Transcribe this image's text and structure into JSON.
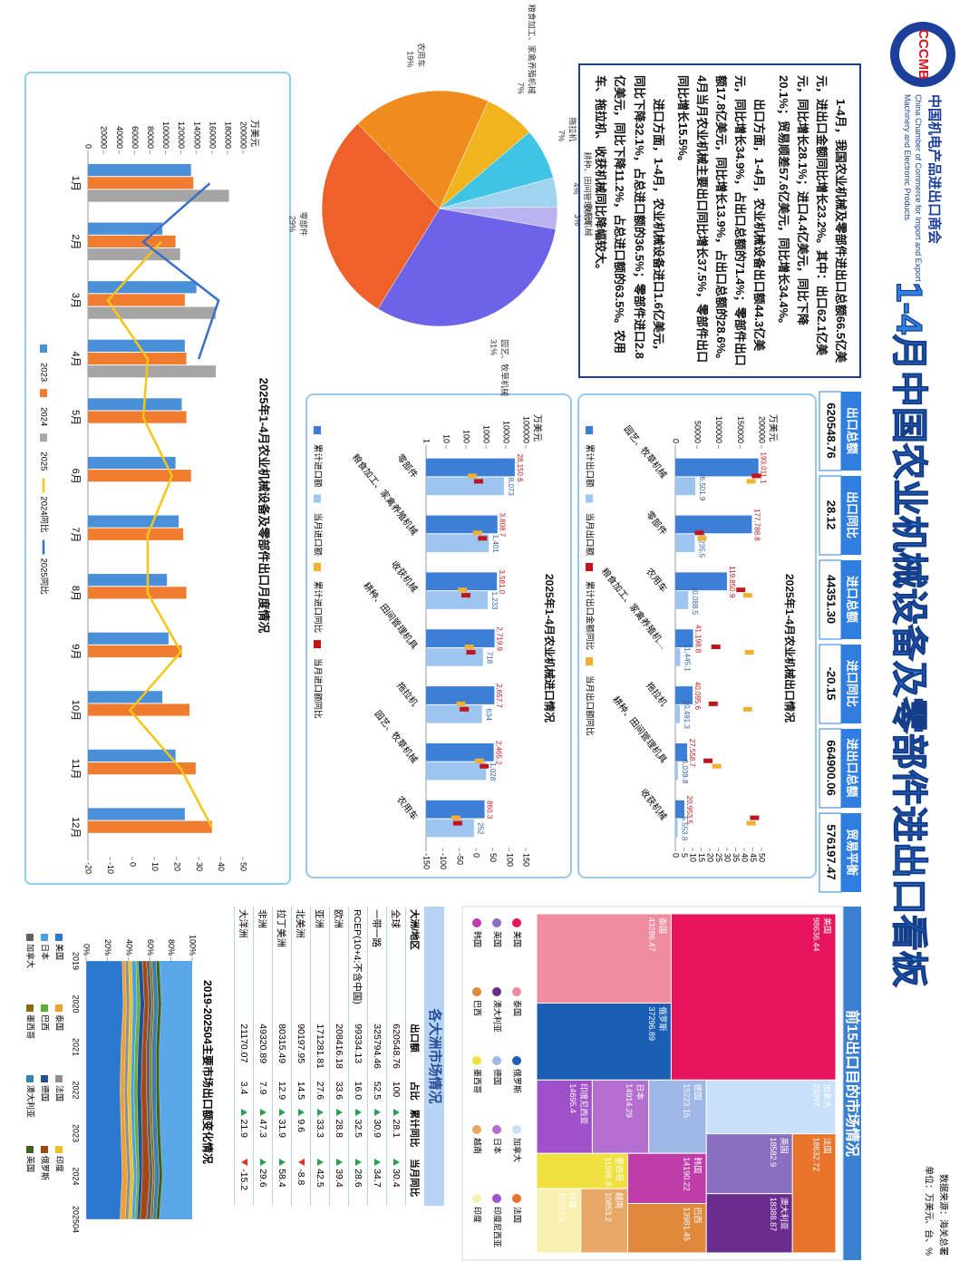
{
  "header": {
    "logo": "CCCMB",
    "org_cn": "中国机电产品进出口商会",
    "org_en": "China Chamber of Commerce for Import and Export of Machinery and Electronic Products",
    "title": "1-4月中国农业机械设备及零部件进出口看板"
  },
  "note": {
    "source": "数据来源：海关总署",
    "unit": "单位：万美元、台、%"
  },
  "kpis": [
    {
      "label": "出口总额",
      "value": "620548.76"
    },
    {
      "label": "出口同比",
      "value": "28.12"
    },
    {
      "label": "进口总额",
      "value": "44351.30"
    },
    {
      "label": "进口同比",
      "value": "-20.15"
    },
    {
      "label": "进出口总额",
      "value": "664900.06"
    },
    {
      "label": "贸易平衡",
      "value": "576197.47"
    }
  ],
  "summary": [
    "1-4月，我国农业机械及零部件进出口总额66.5亿美元，进出口金额同比增长23.2%。其中：出口62.1亿美元，同比增长28.1%；进口4.4亿美元，同比下降20.1%；贸易顺差57.6亿美元，同比增长34.4%。",
    "出口方面，1-4月，农业机械设备出口额44.3亿美元，同比增长34.9%，占出口总额的71.4%；零部件出口额17.8亿美元，同比增长13.9%，占出口总额的28.6%。4月当月农业机械主要出口同比增长37.5%，零部件出口同比增长15.5%。",
    "进口方面，1-4月，农业机械设备进口1.6亿美元，同比下降32.1%，占总进口额的36.5%；零部件进口2.8亿美元，同比下降11.2%，占总进口额的63.5%。农用车、拖拉机、收获机械同比降幅较大。"
  ],
  "market_panel": {
    "title": "前15出口目的市场情况"
  },
  "table": {
    "title": "各大洲市场情况",
    "columns": [
      "大洲/地区",
      "出口额",
      "占比",
      "累计同比",
      "当月同比"
    ],
    "rows": [
      [
        "全球",
        "620548.76",
        "100",
        "28.1",
        "30.4"
      ],
      [
        "一带一路",
        "325794.46",
        "52.5",
        "30.9",
        "34.7"
      ],
      [
        "RCEP(10+4;不含中国)",
        "99334.13",
        "16.0",
        "32.5",
        "28.6"
      ],
      [
        "欧洲",
        "208416.18",
        "33.6",
        "28.8",
        "39.4"
      ],
      [
        "亚洲",
        "171281.81",
        "27.6",
        "33.3",
        "42.5"
      ],
      [
        "北美洲",
        "90197.95",
        "14.5",
        "9.6",
        "-8.8"
      ],
      [
        "拉丁美洲",
        "80315.49",
        "12.9",
        "31.9",
        "58.4"
      ],
      [
        "非洲",
        "49320.89",
        "7.9",
        "47.3",
        "29.6"
      ],
      [
        "大洋洲",
        "21170.07",
        "3.4",
        "21.9",
        "-15.2"
      ]
    ]
  },
  "chart_data": [
    {
      "type": "pie",
      "categories": [
        "园艺、牧草机械",
        "零部件",
        "农用车",
        "粮食加工、家禽养殖机械",
        "拖拉机",
        "耕种、田间管理机具",
        "收获机械"
      ],
      "values": [
        31,
        29,
        19,
        7,
        7,
        4,
        3
      ],
      "value_labels": [
        "31%",
        "29%",
        "19%",
        "7%",
        "7%",
        "4%",
        "3%"
      ],
      "colors": [
        "#6c63e8",
        "#f0602a",
        "#f08c1e",
        "#f0b41e",
        "#40c4e4",
        "#9fd4f0",
        "#b9b3f0"
      ]
    },
    {
      "type": "bar",
      "title": "2025年1-4月农业机械设备及零部件出口月度情况",
      "y_label": "万美元",
      "categories": [
        "1月",
        "2月",
        "3月",
        "4月",
        "5月",
        "6月",
        "7月",
        "8月",
        "9月",
        "10月",
        "11月",
        "12月"
      ],
      "series": [
        {
          "name": "2023",
          "color": "#4a90d9",
          "values": [
            133000,
            96000,
            140000,
            125000,
            121000,
            113000,
            117000,
            102000,
            104000,
            96000,
            113000,
            125000
          ]
        },
        {
          "name": "2024",
          "color": "#f07c30",
          "values": [
            136000,
            113000,
            125000,
            127000,
            127000,
            133000,
            123000,
            127000,
            121000,
            131000,
            139000,
            160000
          ]
        },
        {
          "name": "2025",
          "color": "#a5a5a5",
          "values": [
            182000,
            119000,
            165000,
            165000,
            null,
            null,
            null,
            null,
            null,
            null,
            null,
            null
          ]
        },
        {
          "name": "2024同比",
          "color": "#f5c518",
          "axis": "y2",
          "style": "line",
          "values": [
            null,
            13,
            -11,
            7,
            5,
            18,
            7,
            7,
            22,
            -1,
            22,
            36
          ]
        },
        {
          "name": "2025同比",
          "color": "#3a6fc4",
          "axis": "y2",
          "style": "line",
          "values": [
            35,
            5,
            39,
            30,
            null,
            null,
            null,
            null,
            null,
            null,
            null,
            null
          ]
        }
      ],
      "ylim": [
        0,
        200000
      ],
      "yticks": [
        0,
        20000,
        40000,
        60000,
        80000,
        100000,
        120000,
        140000,
        160000,
        180000,
        200000
      ],
      "y2lim": [
        -20,
        50
      ],
      "y2ticks": [
        -20,
        -10,
        0,
        10,
        20,
        30,
        40,
        50
      ],
      "grid": false
    },
    {
      "type": "bar",
      "title": "2025年1-4月农业机械出口情况",
      "y_label": "万美元",
      "categories": [
        "园艺、牧草机械",
        "零部件",
        "农用车",
        "粮食加工、家禽养殖机…",
        "拖拉机",
        "耕种、田间管理机具",
        "收获机械"
      ],
      "series": [
        {
          "name": "累计出口额",
          "color": "#3d7fd6",
          "label_color": "#c0151b",
          "values": [
            193011.1,
            177788.8,
            119850.9,
            41198.8,
            40095.6,
            27558.7,
            20953.5
          ],
          "value_labels": [
            "193,011.1",
            "177,788.8",
            "119,850.9",
            "41,198.8",
            "40,095.6",
            "27,558.7",
            "20,953.5"
          ]
        },
        {
          "name": "当月出口额",
          "color": "#9ec5ef",
          "label_color": "#2f5fa8",
          "values": [
            46501.9,
            45235.5,
            30088.5,
            11445.1,
            10491.3,
            6039.8,
            5553.8
          ],
          "value_labels": [
            "46,501.9",
            "45,235.5",
            "30,088.5",
            "11,445.1",
            "10,491.3",
            "6,039.8",
            "5,553.8"
          ]
        },
        {
          "name": "累计出口金额同比",
          "color": "#c0151b",
          "axis": "y2",
          "style": "marker",
          "values": [
            47,
            13.9,
            38,
            23.5,
            22,
            19,
            46
          ]
        },
        {
          "name": "当月出口额同比",
          "color": "#f0b030",
          "axis": "y2",
          "style": "marker",
          "values": [
            44,
            15.5,
            42,
            43,
            42,
            24,
            44
          ]
        }
      ],
      "ylim": [
        0,
        200000
      ],
      "yticks": [
        0,
        50000,
        100000,
        150000,
        200000
      ],
      "y2lim": [
        0,
        50
      ],
      "y2ticks": [
        0,
        5,
        10,
        15,
        20,
        25,
        30,
        35,
        40,
        45,
        50
      ]
    },
    {
      "type": "bar",
      "title": "2025年1-4月农业机械进口情况",
      "y_label": "万美元",
      "log_scale": true,
      "categories": [
        "零部件",
        "粮食加工、家禽养殖机械",
        "收获机械",
        "耕种、田间管理机具",
        "拖拉机",
        "园艺、牧草机械",
        "农用车"
      ],
      "series": [
        {
          "name": "累计进口额",
          "color": "#3d7fd6",
          "label_color": "#c0151b",
          "values": [
            28150.6,
            3808.7,
            3581.0,
            2719.9,
            2657.7,
            2465.2,
            860.3
          ],
          "value_labels": [
            "28,150.6",
            "3,808.7",
            "3,581.0",
            "2,719.9",
            "2,657.7",
            "2,465.2",
            "860.3"
          ]
        },
        {
          "name": "当月进口额",
          "color": "#9ec5ef",
          "label_color": "#2f5fa8",
          "values": [
            8073,
            1401,
            1233,
            718,
            634,
            1028,
            252
          ],
          "value_labels": [
            "8,073",
            "1,401",
            "1,233",
            "718",
            "634",
            "1,028",
            "252"
          ]
        },
        {
          "name": "累计进口同比",
          "color": "#f0b030",
          "axis": "y2",
          "style": "marker",
          "values": [
            -11.2,
            5,
            -40,
            -20,
            -45,
            10,
            -60
          ]
        },
        {
          "name": "当月进口额同比",
          "color": "#c0151b",
          "axis": "y2",
          "style": "marker",
          "values": [
            8,
            20,
            -30,
            -15,
            -35,
            25,
            -55
          ]
        }
      ],
      "ylim": [
        1,
        100000
      ],
      "yticks": [
        1,
        10,
        100,
        1000,
        10000,
        100000
      ],
      "y2lim": [
        -150,
        150
      ],
      "y2ticks": [
        -150,
        -100,
        -50,
        0,
        50,
        100,
        150
      ]
    },
    {
      "type": "treemap",
      "categories": [
        "美国",
        "泰国",
        "俄罗斯",
        "加拿大",
        "法国",
        "英国",
        "澳大利亚",
        "德国",
        "日本",
        "印度尼西亚",
        "韩国",
        "巴西",
        "墨西哥",
        "越南",
        "印度"
      ],
      "values": [
        98636.44,
        43286.47,
        37296.89,
        25097.0,
        18632.72,
        18582.9,
        18388.87,
        15223.15,
        14914.29,
        14695.4,
        14190.22,
        13981.45,
        11596.8,
        10853.2,
        10212.6
      ],
      "colors": [
        "#e8135e",
        "#f08ca0",
        "#1a5fb4",
        "#c8e0f8",
        "#e8742c",
        "#8a6fc0",
        "#6a2d8f",
        "#9fb8e8",
        "#b56fd0",
        "#a050c8",
        "#c03ca8",
        "#e0883c",
        "#f0e040",
        "#e8a868",
        "#f8f0b0"
      ]
    },
    {
      "type": "area",
      "title": "2019-202504主要市场出口额变化情况",
      "x": [
        "2019",
        "2020",
        "2021",
        "2022",
        "2023",
        "2024",
        "202504"
      ],
      "series": [
        {
          "name": "美国",
          "color": "#2b78d0",
          "values": [
            34,
            35,
            33,
            32,
            33,
            34,
            32
          ]
        },
        {
          "name": "泰国",
          "color": "#f0a030",
          "values": [
            3,
            3,
            4,
            4,
            4,
            5,
            5
          ]
        },
        {
          "name": "法国",
          "color": "#909090",
          "values": [
            3,
            3,
            3,
            3,
            3,
            3,
            3
          ]
        },
        {
          "name": "印度",
          "color": "#f0c020",
          "values": [
            3,
            3,
            3,
            3,
            3,
            3,
            3
          ]
        },
        {
          "name": "日本",
          "color": "#4aa0e0",
          "values": [
            4,
            4,
            3,
            3,
            3,
            3,
            3
          ]
        },
        {
          "name": "巴西",
          "color": "#60b040",
          "values": [
            2,
            3,
            3,
            3,
            3,
            2,
            2
          ]
        },
        {
          "name": "德国",
          "color": "#264f8c",
          "values": [
            4,
            4,
            4,
            4,
            4,
            3,
            3
          ]
        },
        {
          "name": "俄罗斯",
          "color": "#a04818",
          "values": [
            4,
            4,
            4,
            5,
            5,
            7,
            6
          ]
        },
        {
          "name": "加拿大",
          "color": "#606060",
          "values": [
            3,
            3,
            3,
            3,
            3,
            3,
            4
          ]
        },
        {
          "name": "墨西哥",
          "color": "#8c6c10",
          "values": [
            2,
            2,
            2,
            2,
            2,
            2,
            2
          ]
        },
        {
          "name": "澳大利亚",
          "color": "#3a80b0",
          "values": [
            4,
            4,
            4,
            4,
            4,
            4,
            3
          ]
        },
        {
          "name": "英国",
          "color": "#406020",
          "values": [
            3,
            3,
            3,
            3,
            3,
            3,
            3
          ]
        }
      ],
      "ylim": [
        0,
        100
      ],
      "yticks": [
        {
          "value": 0,
          "label": "0%"
        },
        {
          "value": 20,
          "label": "20%"
        },
        {
          "value": 40,
          "label": "40%"
        },
        {
          "value": 60,
          "label": "60%"
        },
        {
          "value": 80,
          "label": "80%"
        },
        {
          "value": 100,
          "label": "100%"
        }
      ]
    }
  ]
}
